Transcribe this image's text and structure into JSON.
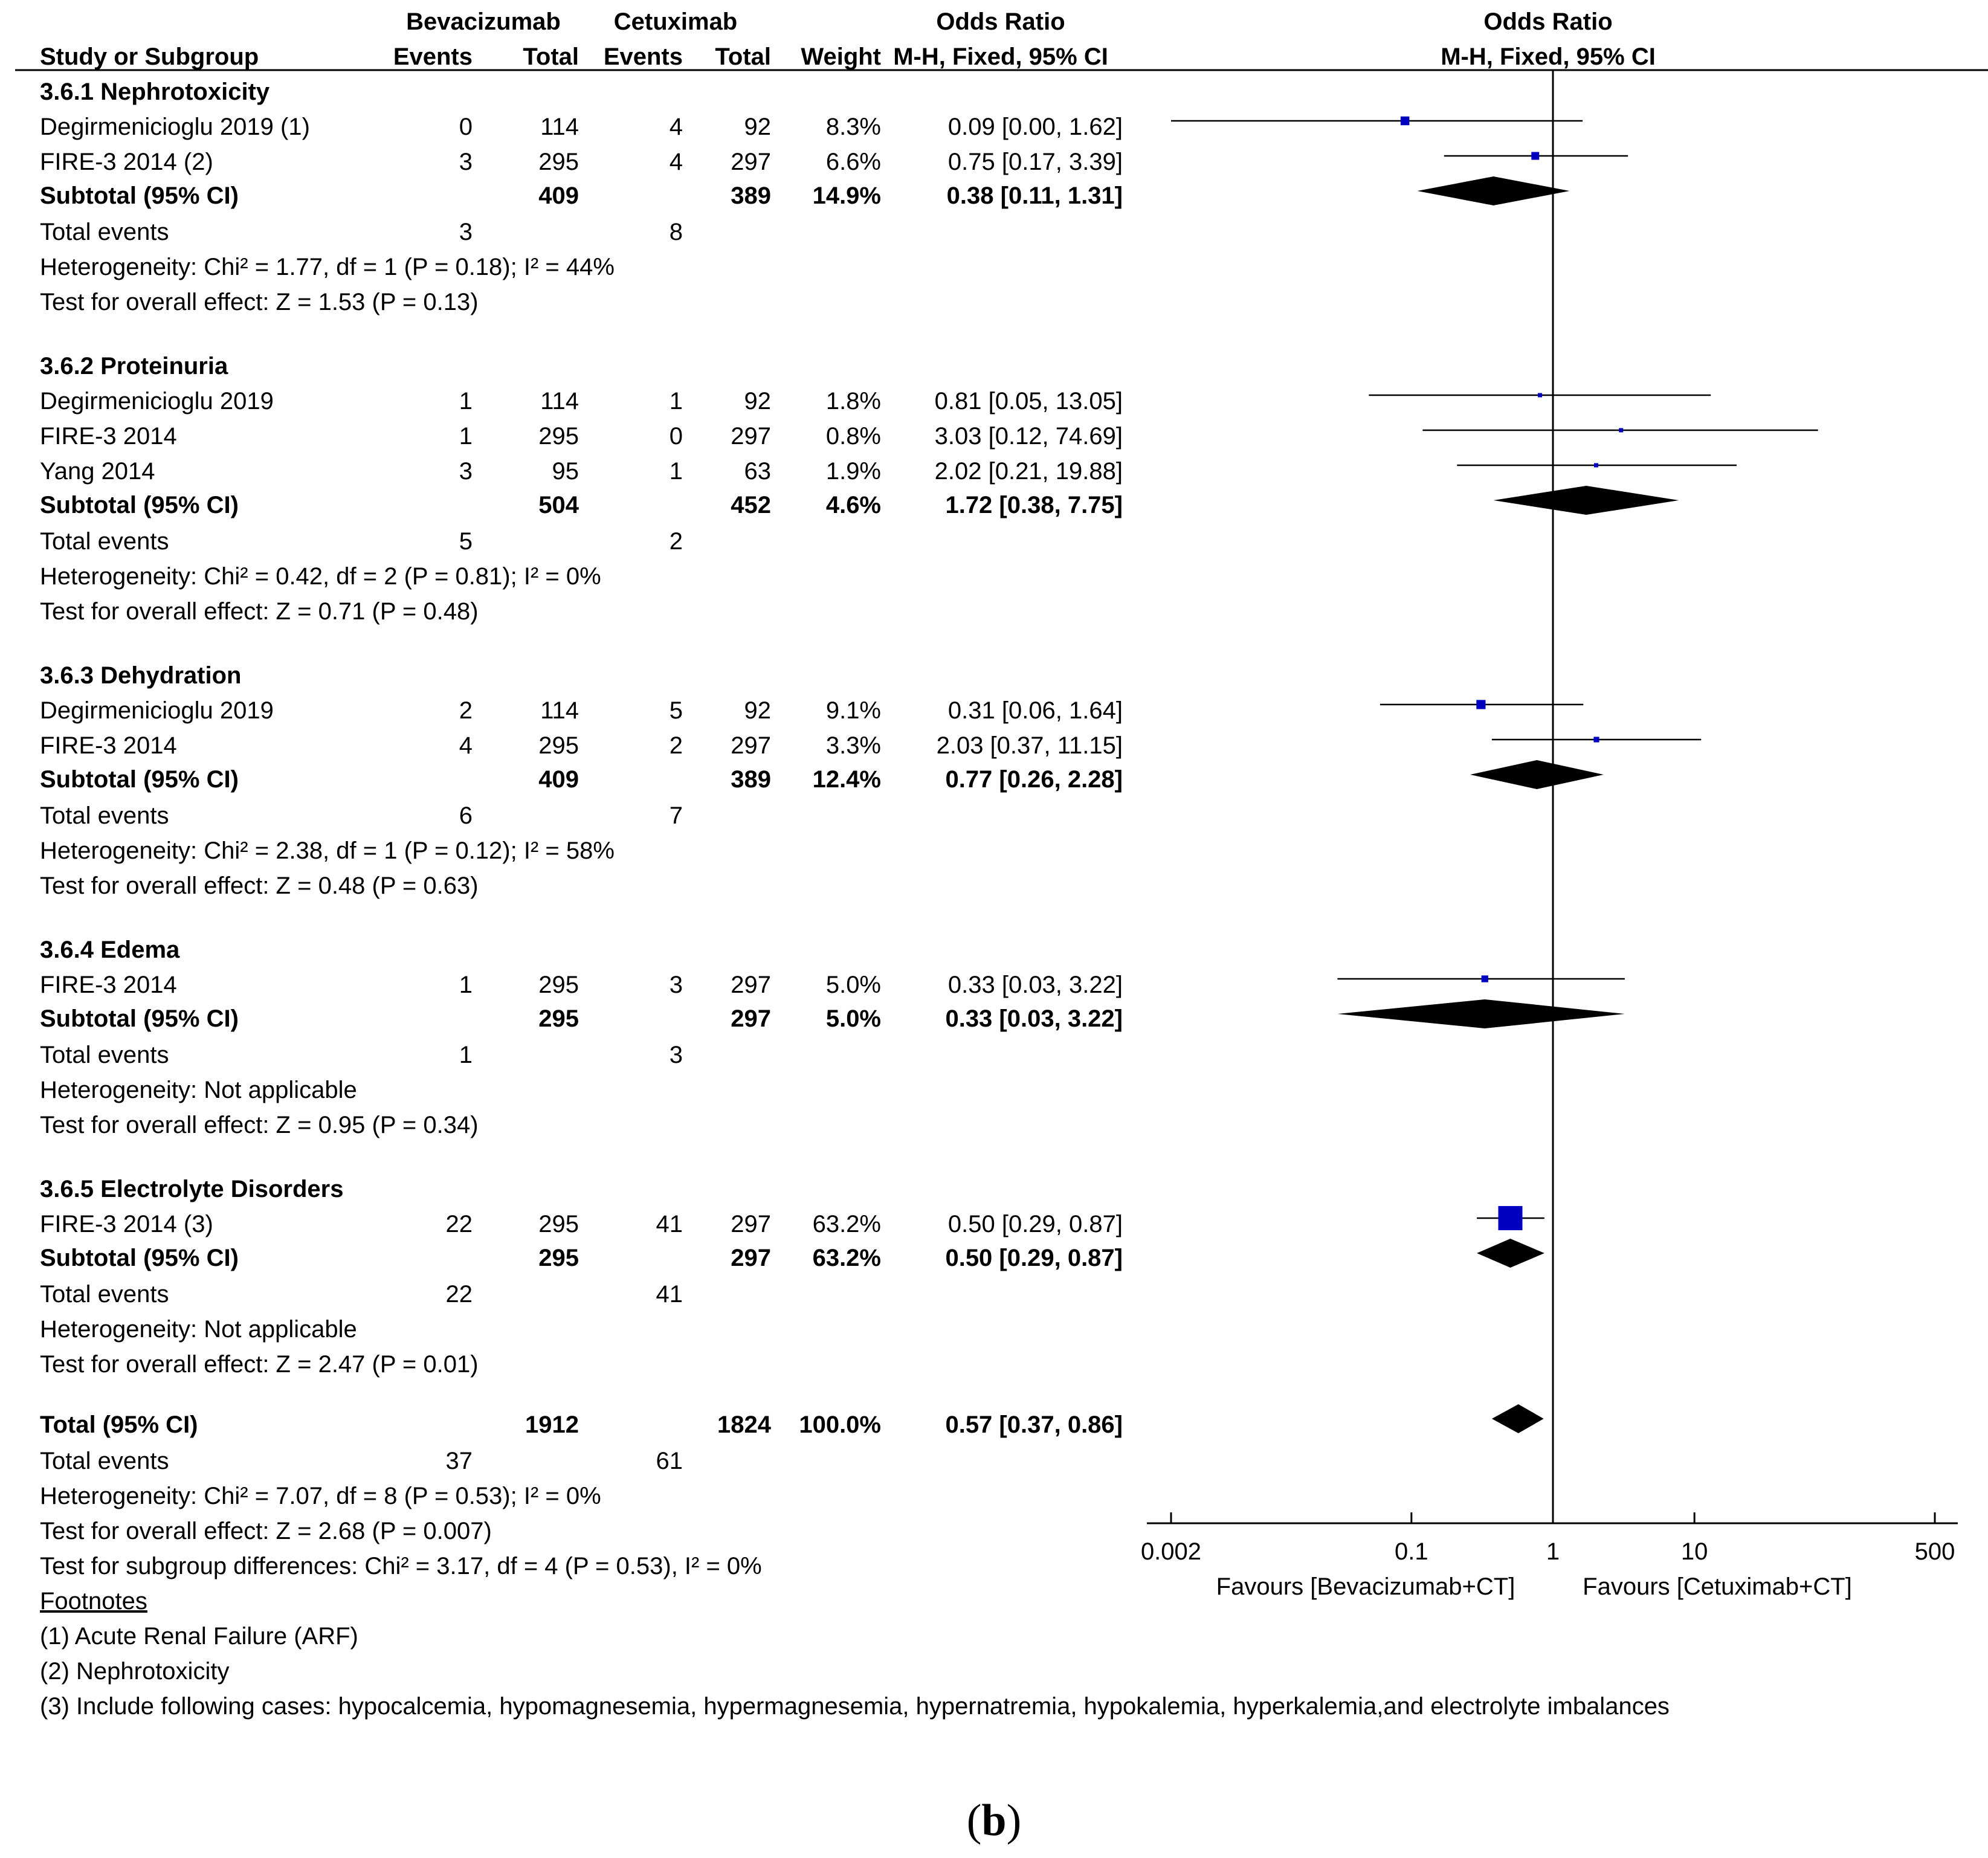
{
  "headers": {
    "group1": "Bevacizumab",
    "group2": "Cetuximab",
    "or_label": "Odds Ratio",
    "plot_title": "Odds Ratio",
    "study": "Study or Subgroup",
    "events1": "Events",
    "total1": "Total",
    "events2": "Events",
    "total2": "Total",
    "weight": "Weight",
    "method": "M-H, Fixed, 95% CI",
    "plot_method": "M-H, Fixed, 95% CI"
  },
  "subgroups": [
    {
      "title": "3.6.1 Nephrotoxicity",
      "studies": [
        {
          "name": "Degirmenicioglu 2019 (1)",
          "e1": "0",
          "t1": "114",
          "e2": "4",
          "t2": "92",
          "w": "8.3%",
          "ci": "0.09 [0.00, 1.62]"
        },
        {
          "name": "FIRE-3 2014 (2)",
          "e1": "3",
          "t1": "295",
          "e2": "4",
          "t2": "297",
          "w": "6.6%",
          "ci": "0.75 [0.17, 3.39]"
        }
      ],
      "subtotal": {
        "label": "Subtotal (95% CI)",
        "t1": "409",
        "t2": "389",
        "w": "14.9%",
        "ci": "0.38 [0.11, 1.31]"
      },
      "events": {
        "label": "Total events",
        "e1": "3",
        "e2": "8"
      },
      "heterogeneity": "Heterogeneity: Chi² = 1.77, df = 1 (P = 0.18); I² = 44%",
      "overall": "Test for overall effect: Z = 1.53 (P = 0.13)"
    },
    {
      "title": "3.6.2 Proteinuria",
      "studies": [
        {
          "name": "Degirmenicioglu 2019",
          "e1": "1",
          "t1": "114",
          "e2": "1",
          "t2": "92",
          "w": "1.8%",
          "ci": "0.81 [0.05, 13.05]"
        },
        {
          "name": "FIRE-3 2014",
          "e1": "1",
          "t1": "295",
          "e2": "0",
          "t2": "297",
          "w": "0.8%",
          "ci": "3.03 [0.12, 74.69]"
        },
        {
          "name": "Yang 2014",
          "e1": "3",
          "t1": "95",
          "e2": "1",
          "t2": "63",
          "w": "1.9%",
          "ci": "2.02 [0.21, 19.88]"
        }
      ],
      "subtotal": {
        "label": "Subtotal (95% CI)",
        "t1": "504",
        "t2": "452",
        "w": "4.6%",
        "ci": "1.72 [0.38, 7.75]"
      },
      "events": {
        "label": "Total events",
        "e1": "5",
        "e2": "2"
      },
      "heterogeneity": "Heterogeneity: Chi² = 0.42, df = 2 (P = 0.81); I² = 0%",
      "overall": "Test for overall effect: Z = 0.71 (P = 0.48)"
    },
    {
      "title": "3.6.3 Dehydration",
      "studies": [
        {
          "name": "Degirmenicioglu 2019",
          "e1": "2",
          "t1": "114",
          "e2": "5",
          "t2": "92",
          "w": "9.1%",
          "ci": "0.31 [0.06, 1.64]"
        },
        {
          "name": "FIRE-3 2014",
          "e1": "4",
          "t1": "295",
          "e2": "2",
          "t2": "297",
          "w": "3.3%",
          "ci": "2.03 [0.37, 11.15]"
        }
      ],
      "subtotal": {
        "label": "Subtotal (95% CI)",
        "t1": "409",
        "t2": "389",
        "w": "12.4%",
        "ci": "0.77 [0.26, 2.28]"
      },
      "events": {
        "label": "Total events",
        "e1": "6",
        "e2": "7"
      },
      "heterogeneity": "Heterogeneity: Chi² = 2.38, df = 1 (P = 0.12); I² = 58%",
      "overall": "Test for overall effect: Z = 0.48 (P = 0.63)"
    },
    {
      "title": "3.6.4 Edema",
      "studies": [
        {
          "name": "FIRE-3 2014",
          "e1": "1",
          "t1": "295",
          "e2": "3",
          "t2": "297",
          "w": "5.0%",
          "ci": "0.33 [0.03, 3.22]"
        }
      ],
      "subtotal": {
        "label": "Subtotal (95% CI)",
        "t1": "295",
        "t2": "297",
        "w": "5.0%",
        "ci": "0.33 [0.03, 3.22]"
      },
      "events": {
        "label": "Total events",
        "e1": "1",
        "e2": "3"
      },
      "heterogeneity": "Heterogeneity: Not applicable",
      "overall": "Test for overall effect: Z = 0.95 (P = 0.34)"
    },
    {
      "title": "3.6.5 Electrolyte Disorders",
      "studies": [
        {
          "name": "FIRE-3 2014 (3)",
          "e1": "22",
          "t1": "295",
          "e2": "41",
          "t2": "297",
          "w": "63.2%",
          "ci": "0.50 [0.29, 0.87]"
        }
      ],
      "subtotal": {
        "label": "Subtotal (95% CI)",
        "t1": "295",
        "t2": "297",
        "w": "63.2%",
        "ci": "0.50 [0.29, 0.87]"
      },
      "events": {
        "label": "Total events",
        "e1": "22",
        "e2": "41"
      },
      "heterogeneity": "Heterogeneity: Not applicable",
      "overall": "Test for overall effect: Z = 2.47 (P = 0.01)"
    }
  ],
  "total": {
    "label": "Total (95% CI)",
    "t1": "1912",
    "t2": "1824",
    "w": "100.0%",
    "ci": "0.57 [0.37, 0.86]",
    "events": {
      "label": "Total events",
      "e1": "37",
      "e2": "61"
    },
    "heterogeneity": "Heterogeneity: Chi² = 7.07, df = 8 (P = 0.53); I² = 0%",
    "overall": "Test for overall effect: Z = 2.68 (P = 0.007)",
    "subgroup_diff": "Test for subgroup differences: Chi² = 3.17, df = 4 (P = 0.53), I² = 0%"
  },
  "footnotes": {
    "title": "Footnotes",
    "items": [
      "(1) Acute Renal Failure (ARF)",
      "(2) Nephrotoxicity",
      "(3) Include following cases: hypocalcemia, hypomagnesemia, hypermagnesemia, hypernatremia, hypokalemia, hyperkalemia,and electrolyte imbalances"
    ]
  },
  "caption_letter": "b",
  "chart_data": {
    "type": "forest",
    "title": "Odds Ratio",
    "subtitle": "M-H, Fixed, 95% CI",
    "scale": "log",
    "xlim": [
      0.002,
      500
    ],
    "ticks": [
      0.002,
      0.1,
      1,
      10,
      500
    ],
    "tick_labels": [
      "0.002",
      "0.1",
      "1",
      "10",
      "500"
    ],
    "null_line": 1,
    "favours_left": "Favours [Bevacizumab+CT]",
    "favours_right": "Favours [Cetuximab+CT]",
    "colors": {
      "study_marker": "#0000c0",
      "diamond": "#000000",
      "axis": "#000000"
    },
    "studies": [
      {
        "group": 0,
        "or": 0.09,
        "lo": 0.0,
        "hi": 1.62,
        "weight": 8.3
      },
      {
        "group": 0,
        "or": 0.75,
        "lo": 0.17,
        "hi": 3.39,
        "weight": 6.6
      },
      {
        "group": 1,
        "or": 0.81,
        "lo": 0.05,
        "hi": 13.05,
        "weight": 1.8
      },
      {
        "group": 1,
        "or": 3.03,
        "lo": 0.12,
        "hi": 74.69,
        "weight": 0.8
      },
      {
        "group": 1,
        "or": 2.02,
        "lo": 0.21,
        "hi": 19.88,
        "weight": 1.9
      },
      {
        "group": 2,
        "or": 0.31,
        "lo": 0.06,
        "hi": 1.64,
        "weight": 9.1
      },
      {
        "group": 2,
        "or": 2.03,
        "lo": 0.37,
        "hi": 11.15,
        "weight": 3.3
      },
      {
        "group": 3,
        "or": 0.33,
        "lo": 0.03,
        "hi": 3.22,
        "weight": 5.0
      },
      {
        "group": 4,
        "or": 0.5,
        "lo": 0.29,
        "hi": 0.87,
        "weight": 63.2
      }
    ],
    "subtotals": [
      {
        "group": 0,
        "or": 0.38,
        "lo": 0.11,
        "hi": 1.31
      },
      {
        "group": 1,
        "or": 1.72,
        "lo": 0.38,
        "hi": 7.75
      },
      {
        "group": 2,
        "or": 0.77,
        "lo": 0.26,
        "hi": 2.28
      },
      {
        "group": 3,
        "or": 0.33,
        "lo": 0.03,
        "hi": 3.22
      },
      {
        "group": 4,
        "or": 0.5,
        "lo": 0.29,
        "hi": 0.87
      }
    ],
    "overall": {
      "or": 0.57,
      "lo": 0.37,
      "hi": 0.86
    }
  }
}
